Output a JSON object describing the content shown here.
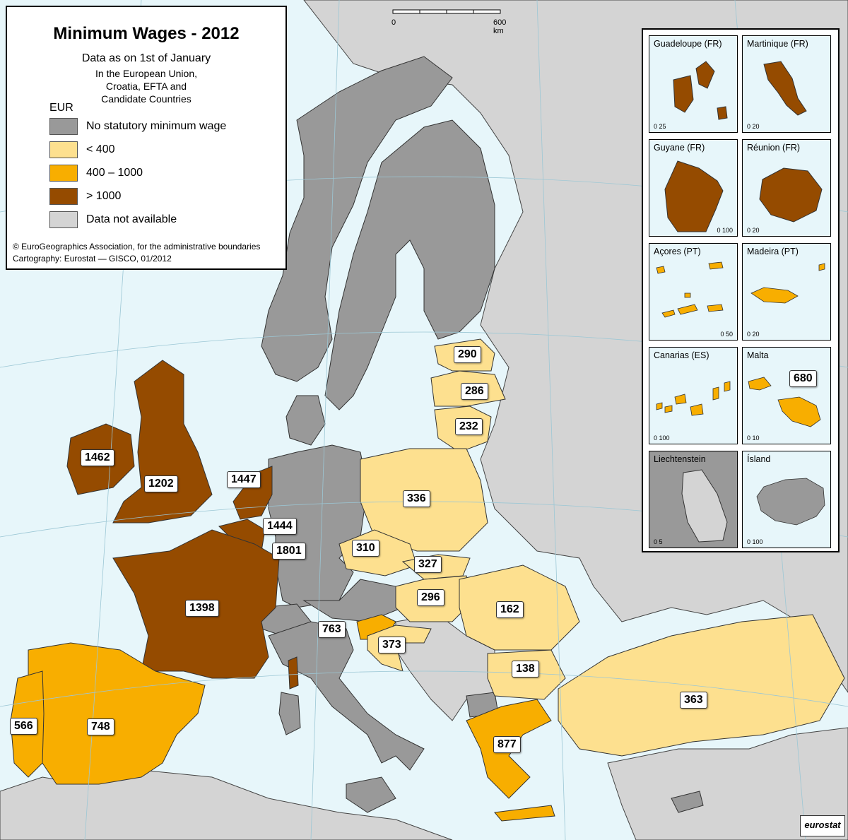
{
  "title": "Minimum Wages - 2012",
  "subtitle_lines": [
    "Data as on 1st of January",
    "In the European Union,",
    "Croatia, EFTA and",
    "Candidate Countries"
  ],
  "unit": "EUR",
  "legend": [
    {
      "label": "No statutory minimum wage",
      "color": "#999999"
    },
    {
      "label": "< 400",
      "color": "#fde08f"
    },
    {
      "label": "400 – 1000",
      "color": "#f8ae00"
    },
    {
      "label": "> 1000",
      "color": "#954b00"
    },
    {
      "label": "Data not available",
      "color": "#d4d4d4"
    }
  ],
  "credits": [
    "© EuroGeographics Association, for the administrative boundaries",
    "Cartography: Eurostat — GISCO, 01/2012"
  ],
  "scale": {
    "start": "0",
    "end": "600 km"
  },
  "value_labels": [
    {
      "name": "ireland",
      "value": "1462"
    },
    {
      "name": "united-kingdom",
      "value": "1202"
    },
    {
      "name": "netherlands",
      "value": "1447"
    },
    {
      "name": "belgium",
      "value": "1444"
    },
    {
      "name": "luxembourg",
      "value": "1801"
    },
    {
      "name": "france",
      "value": "1398"
    },
    {
      "name": "spain",
      "value": "748"
    },
    {
      "name": "portugal",
      "value": "566"
    },
    {
      "name": "estonia",
      "value": "290"
    },
    {
      "name": "latvia",
      "value": "286"
    },
    {
      "name": "lithuania",
      "value": "232"
    },
    {
      "name": "poland",
      "value": "336"
    },
    {
      "name": "czech-republic",
      "value": "310"
    },
    {
      "name": "slovakia",
      "value": "327"
    },
    {
      "name": "hungary",
      "value": "296"
    },
    {
      "name": "slovenia",
      "value": "763"
    },
    {
      "name": "croatia",
      "value": "373"
    },
    {
      "name": "romania",
      "value": "162"
    },
    {
      "name": "bulgaria",
      "value": "138"
    },
    {
      "name": "greece",
      "value": "877"
    },
    {
      "name": "turkey",
      "value": "363"
    }
  ],
  "insets": [
    {
      "name": "Guadeloupe (FR)",
      "scale_end": "25",
      "color": "#954b00"
    },
    {
      "name": "Martinique (FR)",
      "scale_end": "20",
      "color": "#954b00"
    },
    {
      "name": "Guyane (FR)",
      "scale_end": "100",
      "color": "#954b00"
    },
    {
      "name": "Réunion (FR)",
      "scale_end": "20",
      "color": "#954b00"
    },
    {
      "name": "Açores (PT)",
      "scale_end": "50",
      "color": "#f8ae00"
    },
    {
      "name": "Madeira (PT)",
      "scale_end": "20",
      "color": "#f8ae00"
    },
    {
      "name": "Canarias (ES)",
      "scale_end": "100",
      "color": "#f8ae00"
    },
    {
      "name": "Malta",
      "scale_end": "10",
      "color": "#f8ae00",
      "value": "680"
    },
    {
      "name": "Liechtenstein",
      "scale_end": "5",
      "color": "#999999"
    },
    {
      "name": "Ísland",
      "scale_end": "100",
      "color": "#999999"
    }
  ],
  "logo": "eurostat"
}
